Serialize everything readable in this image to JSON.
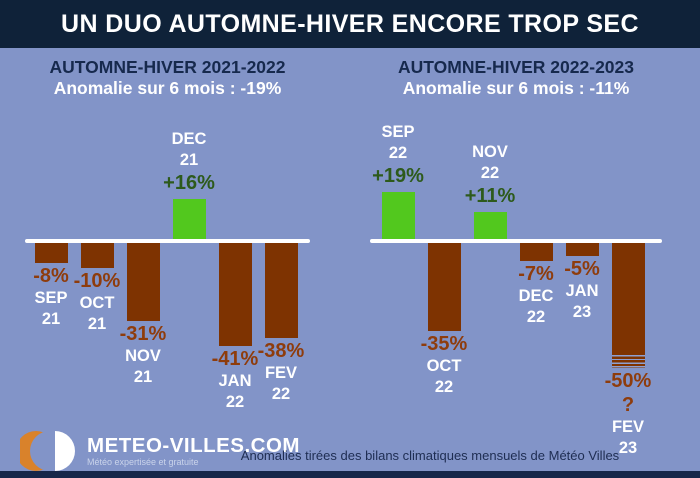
{
  "colors": {
    "background": "#8294c8",
    "title_bar_bg": "#0f2239",
    "bottom_strip_bg": "#16274a",
    "panel_title_text": "#16294d",
    "subtitle_text": "#ffffff",
    "bar_negative": "#7e3301",
    "bar_positive": "#52c81e",
    "value_negative_text": "#8e3c0c",
    "value_positive_text": "#2d5a1b",
    "axis_line": "#ffffff",
    "footer_note_text": "#1e2d52",
    "logo_orange": "#d9822b"
  },
  "title_bar": {
    "title": "UN DUO AUTOMNE-HIVER ENCORE TROP SEC"
  },
  "panels": [
    {
      "title": "AUTOMNE-HIVER 2021-2022",
      "subtitle": "Anomalie sur 6 mois : -19%"
    },
    {
      "title": "AUTOMNE-HIVER 2022-2023",
      "subtitle": "Anomalie sur 6 mois : -11%"
    }
  ],
  "chart_data": [
    {
      "type": "bar",
      "title": "AUTOMNE-HIVER 2021-2022",
      "anomaly_6_months_pct": -19,
      "unit": "%",
      "ylim": [
        -50,
        20
      ],
      "baseline": 0,
      "grid": false,
      "legend": "none",
      "categories": [
        "SEP 21",
        "OCT 21",
        "NOV 21",
        "DEC 21",
        "JAN 22",
        "FEV 22"
      ],
      "values": [
        -8,
        -10,
        -31,
        16,
        -41,
        -38
      ],
      "bars": [
        {
          "month": "SEP",
          "year": "21",
          "value": -8,
          "label": "-8%"
        },
        {
          "month": "OCT",
          "year": "21",
          "value": -10,
          "label": "-10%"
        },
        {
          "month": "NOV",
          "year": "21",
          "value": -31,
          "label": "-31%"
        },
        {
          "month": "DEC",
          "year": "21",
          "value": 16,
          "label": "+16%"
        },
        {
          "month": "JAN",
          "year": "22",
          "value": -41,
          "label": "-41%"
        },
        {
          "month": "FEV",
          "year": "22",
          "value": -38,
          "label": "-38%"
        }
      ]
    },
    {
      "type": "bar",
      "title": "AUTOMNE-HIVER 2022-2023",
      "anomaly_6_months_pct": -11,
      "unit": "%",
      "ylim": [
        -50,
        20
      ],
      "baseline": 0,
      "grid": false,
      "legend": "none",
      "categories": [
        "SEP 22",
        "OCT 22",
        "NOV 22",
        "DEC 22",
        "JAN 23",
        "FEV 23"
      ],
      "values": [
        19,
        -35,
        11,
        -7,
        -5,
        -50
      ],
      "bars": [
        {
          "month": "SEP",
          "year": "22",
          "value": 19,
          "label": "+19%"
        },
        {
          "month": "OCT",
          "year": "22",
          "value": -35,
          "label": "-35%"
        },
        {
          "month": "NOV",
          "year": "22",
          "value": 11,
          "label": "+11%"
        },
        {
          "month": "DEC",
          "year": "22",
          "value": -7,
          "label": "-7%"
        },
        {
          "month": "JAN",
          "year": "23",
          "value": -5,
          "label": "-5%"
        },
        {
          "month": "FEV",
          "year": "23",
          "value": -50,
          "label": "-50% ?",
          "estimated": true,
          "striped_bottom": true
        }
      ]
    }
  ],
  "footer": {
    "logo_name": "METEO-VILLES.COM",
    "logo_tagline": "Météo expertisée et gratuite",
    "note": "Anomalies tirées des bilans climatiques mensuels de Météo Villes"
  }
}
